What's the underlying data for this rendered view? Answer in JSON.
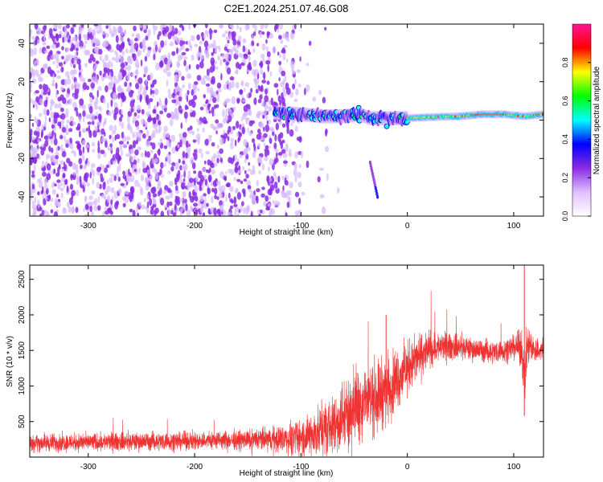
{
  "title": "C2E1.2024.251.07.46.G08",
  "chart_data": [
    {
      "type": "heatmap",
      "xlabel": "Height of straight line (km)",
      "ylabel": "Frequency (Hz)",
      "xlim": [
        -355,
        128
      ],
      "ylim": [
        -50,
        50
      ],
      "x_ticks": [
        -300,
        -200,
        -100,
        0,
        100
      ],
      "y_ticks": [
        -40,
        -20,
        0,
        20,
        40
      ],
      "colorbar": {
        "label": "Normalized spectral amplitude",
        "range": [
          0,
          1
        ],
        "ticks": [
          0.0,
          0.2,
          0.4,
          0.6,
          0.8
        ],
        "colors": [
          "#ffffff",
          "#e0c0ff",
          "#8a2be2",
          "#0000ff",
          "#00ffff",
          "#00ff00",
          "#ffff00",
          "#ff0000",
          "#ff1493"
        ]
      },
      "features": {
        "noise_region_x": [
          -355,
          -100
        ],
        "noise_fade_x": [
          -130,
          -60
        ],
        "carrier_line": {
          "x": [
            -125,
            -100,
            -80,
            -60,
            -45,
            -35,
            -25,
            -10,
            0,
            20,
            50,
            70,
            90,
            110,
            128
          ],
          "y": [
            4,
            3,
            2,
            2,
            3,
            1,
            1,
            1,
            1,
            1.5,
            2,
            3,
            3,
            2,
            3
          ]
        },
        "secondary_streak": {
          "x": [
            -35,
            -28
          ],
          "y": [
            -22,
            -40
          ]
        }
      }
    },
    {
      "type": "line",
      "xlabel": "Height of straight line (km)",
      "ylabel": "SNR (10 * v/v)",
      "xlim": [
        -355,
        128
      ],
      "ylim": [
        0,
        2700
      ],
      "x_ticks": [
        -300,
        -200,
        -100,
        0,
        100
      ],
      "y_ticks": [
        500,
        1000,
        1500,
        2000,
        2500
      ],
      "color": "#ee3333",
      "x": [
        -355,
        -300,
        -250,
        -200,
        -150,
        -110,
        -90,
        -70,
        -50,
        -40,
        -30,
        -20,
        -10,
        0,
        10,
        20,
        30,
        40,
        50,
        60,
        70,
        80,
        90,
        100,
        105,
        108,
        110,
        112,
        115,
        120,
        128
      ],
      "y": [
        200,
        210,
        220,
        230,
        240,
        260,
        300,
        450,
        700,
        800,
        850,
        950,
        1100,
        1250,
        1400,
        1500,
        1550,
        1550,
        1550,
        1520,
        1500,
        1480,
        1500,
        1550,
        1550,
        1500,
        1000,
        1500,
        1600,
        1500,
        1500
      ],
      "noise_amplitude": [
        120,
        120,
        120,
        120,
        130,
        200,
        300,
        400,
        500,
        500,
        500,
        450,
        400,
        350,
        300,
        250,
        200,
        180,
        160,
        150,
        150,
        150,
        150,
        160,
        200,
        300,
        400,
        300,
        200,
        180,
        160
      ],
      "spikes": [
        {
          "x": 110,
          "y": 2700
        },
        {
          "x": 110,
          "y": 580
        },
        {
          "x": -20,
          "y": 2000
        }
      ]
    }
  ]
}
